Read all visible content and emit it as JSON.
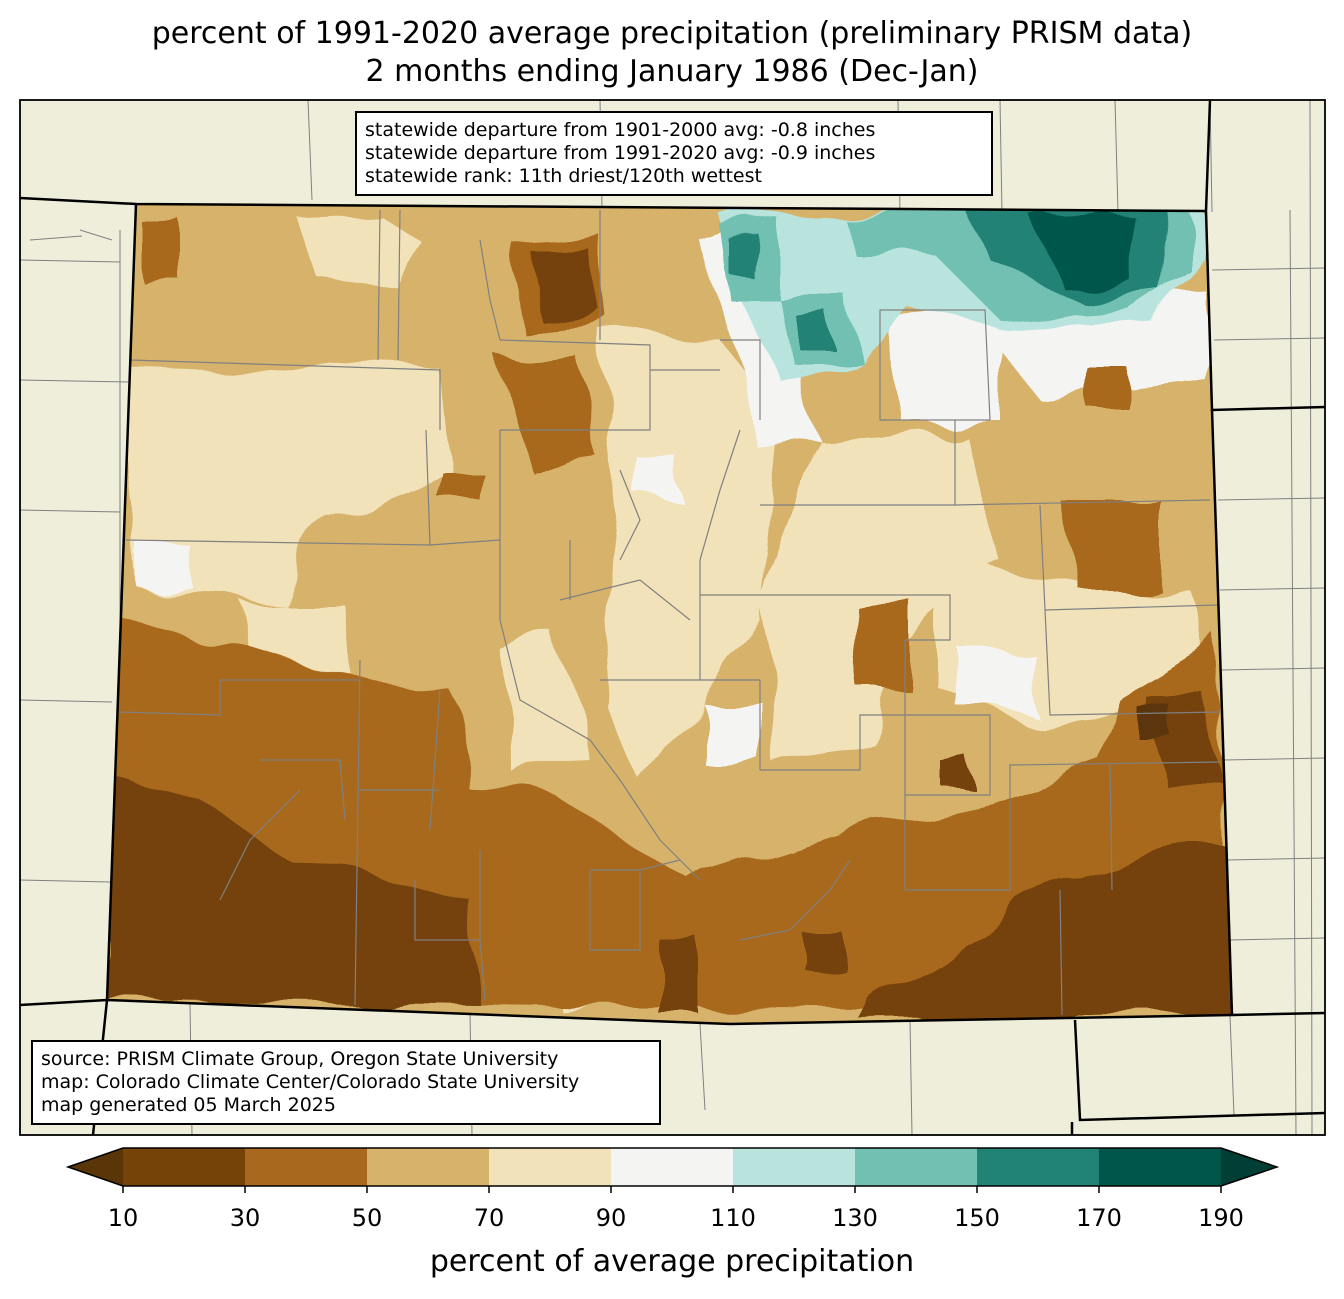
{
  "title": {
    "line1": "percent of 1991-2020 average precipitation (preliminary PRISM data)",
    "line2": "2 months ending January 1986 (Dec-Jan)"
  },
  "stats_box": {
    "lines": [
      "statewide departure from 1901-2000 avg: -0.8 inches",
      "statewide departure from 1991-2020 avg: -0.9 inches",
      "statewide rank: 11th driest/120th wettest"
    ]
  },
  "credits_box": {
    "lines": [
      "source: PRISM Climate Group, Oregon State University",
      "map: Colorado Climate Center/Colorado State University",
      "map generated 05 March 2025"
    ]
  },
  "colorbar": {
    "label": "percent of average precipitation",
    "ticks": [
      "10",
      "30",
      "50",
      "70",
      "90",
      "110",
      "130",
      "150",
      "170",
      "190"
    ],
    "colors": [
      "#754207",
      "#a8691e",
      "#d7b26b",
      "#f2e2b9",
      "#f4f4f2",
      "#b9e4de",
      "#71c0b1",
      "#218276",
      "#00564b"
    ],
    "under_color": "#5a3508",
    "over_color": "#013e35"
  },
  "map_colors": {
    "land_background": "#efeedb",
    "state_border": "#000000",
    "county_lines": "#808080"
  }
}
